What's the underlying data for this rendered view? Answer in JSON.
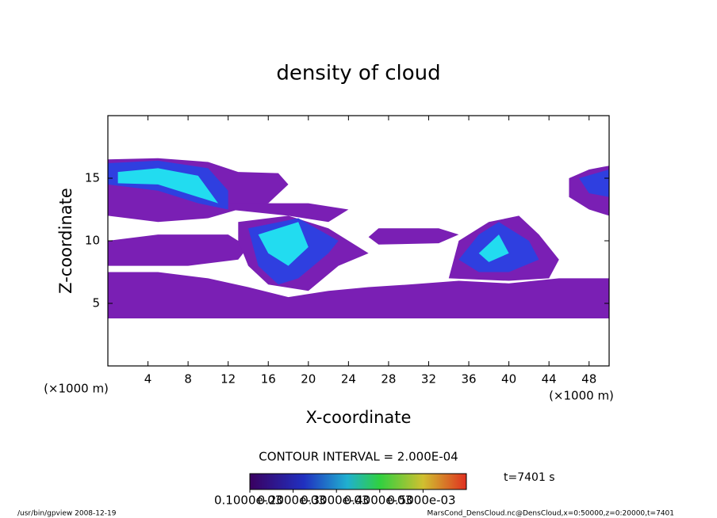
{
  "chart_data": {
    "type": "contour",
    "title": "density of cloud",
    "xlabel": "X-coordinate",
    "ylabel": "Z-coordinate",
    "x_unit": "(×1000 m)",
    "xlim": [
      0,
      50
    ],
    "xticks": [
      4,
      8,
      12,
      16,
      20,
      24,
      28,
      32,
      36,
      40,
      44,
      48
    ],
    "ylim": [
      0,
      20
    ],
    "yticks": [
      5,
      10,
      15
    ],
    "levels": [
      0.0001,
      0.0002,
      0.0004
    ],
    "level_colors": [
      "#7a1fb4",
      "#2f3fe0",
      "#22dcf0"
    ],
    "regions": [
      {
        "level": 0.0001,
        "x": [
          0,
          5,
          10,
          13,
          17,
          18,
          16,
          13,
          10,
          5,
          0
        ],
        "z": [
          16.5,
          16.6,
          16.3,
          15.5,
          15.4,
          14.5,
          13,
          12.5,
          11.8,
          11.5,
          12
        ]
      },
      {
        "level": 0.0001,
        "x": [
          0,
          50,
          50,
          45,
          40,
          35,
          30,
          26,
          22,
          18,
          14,
          10,
          5,
          0
        ],
        "z": [
          3.8,
          3.8,
          7,
          7,
          6.6,
          6.8,
          6.5,
          6.3,
          6,
          5.5,
          6.3,
          7,
          7.5,
          7.5
        ]
      },
      {
        "level": 0.0001,
        "x": [
          0,
          8,
          13,
          14,
          12,
          5,
          0
        ],
        "z": [
          8,
          8,
          8.5,
          9.5,
          10.5,
          10.5,
          10
        ]
      },
      {
        "level": 0.0001,
        "x": [
          13,
          18,
          22,
          26,
          23,
          20,
          16,
          14,
          13
        ],
        "z": [
          11.5,
          12,
          11,
          9,
          8,
          6,
          6.5,
          8,
          10
        ]
      },
      {
        "level": 0.0001,
        "x": [
          10,
          20,
          24,
          22,
          18,
          12
        ],
        "z": [
          13,
          13,
          12.5,
          11.5,
          12,
          12.5
        ]
      },
      {
        "level": 0.0001,
        "x": [
          27,
          33,
          35,
          33,
          27,
          26
        ],
        "z": [
          11,
          11,
          10.5,
          9.8,
          9.7,
          10.3
        ]
      },
      {
        "level": 0.0001,
        "x": [
          34,
          35,
          38,
          41,
          43,
          45,
          44,
          40
        ],
        "z": [
          7,
          10,
          11.5,
          12,
          10.5,
          8.5,
          7,
          6.8
        ]
      },
      {
        "level": 0.0001,
        "x": [
          46,
          48,
          50,
          50,
          48,
          46
        ],
        "z": [
          15,
          15.7,
          16,
          12,
          12.5,
          13.5
        ]
      },
      {
        "level": 0.0002,
        "x": [
          0,
          5,
          10,
          12,
          12,
          9,
          5,
          0
        ],
        "z": [
          16.2,
          16.4,
          15.8,
          14,
          12.5,
          13,
          14,
          14.5
        ]
      },
      {
        "level": 0.0002,
        "x": [
          14,
          19,
          23,
          22,
          19,
          17,
          15
        ],
        "z": [
          11,
          11.8,
          10,
          9,
          7,
          6.5,
          8
        ]
      },
      {
        "level": 0.0002,
        "x": [
          35,
          37,
          39,
          42,
          43,
          40,
          37
        ],
        "z": [
          8.5,
          10.5,
          11.5,
          10,
          8.5,
          7.5,
          7.5
        ]
      },
      {
        "level": 0.0002,
        "x": [
          47,
          50,
          50,
          48
        ],
        "z": [
          15,
          15.7,
          13.5,
          13.8
        ]
      },
      {
        "level": 0.0004,
        "x": [
          1,
          5,
          9,
          11,
          9,
          5,
          1
        ],
        "z": [
          15.5,
          15.8,
          15.2,
          13,
          13.5,
          14.5,
          14.6
        ]
      },
      {
        "level": 0.0004,
        "x": [
          15,
          19,
          20,
          18,
          16
        ],
        "z": [
          10.5,
          11.5,
          9.5,
          8,
          9
        ]
      },
      {
        "level": 0.0004,
        "x": [
          37,
          39,
          40,
          38
        ],
        "z": [
          9,
          10.5,
          9,
          8.3
        ]
      }
    ],
    "contour_label": "CONTOUR INTERVAL = 2.000E-04",
    "time_label": "t=7401 s",
    "colorbar_lim": [
      0.0001,
      0.0006
    ],
    "colorbar_ticks": [
      {
        "value": 0.0001,
        "label": "0.1000e-03"
      },
      {
        "value": 0.0002,
        "label": "0.2000e-03"
      },
      {
        "value": 0.0003,
        "label": "0.3000e-03"
      },
      {
        "value": 0.0004,
        "label": "0.4000e-03"
      },
      {
        "value": 0.0005,
        "label": "0.5000e-03"
      }
    ],
    "footer_left": "/usr/bin/gpview   2008-12-19",
    "footer_right": "MarsCond_DensCloud.nc@DensCloud,x=0:50000,z=0:20000,t=7401"
  }
}
